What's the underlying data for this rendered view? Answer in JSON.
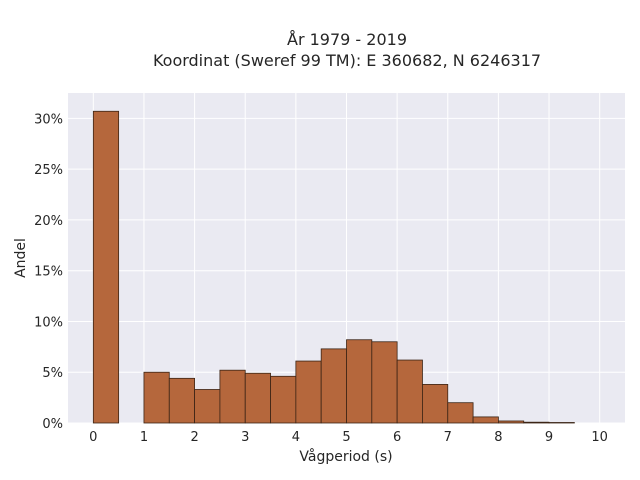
{
  "chart_data": {
    "type": "bar",
    "title": "År 1979 - 2019",
    "subtitle": "Koordinat (Sweref 99 TM): E 360682, N 6246317",
    "xlabel": "Vågperiod (s)",
    "ylabel": "Andel",
    "xlim": [
      -0.5,
      10.5
    ],
    "ylim": [
      0,
      32.5
    ],
    "x_ticks": [
      0,
      1,
      2,
      3,
      4,
      5,
      6,
      7,
      8,
      9,
      10
    ],
    "y_ticks": [
      0,
      5,
      10,
      15,
      20,
      25,
      30
    ],
    "y_tick_labels": [
      "0%",
      "5%",
      "10%",
      "15%",
      "20%",
      "25%",
      "30%"
    ],
    "grid": true,
    "bar_color": "#b5673c",
    "plot_background": "#eaeaf2",
    "bin_width": 0.5,
    "bins": [
      {
        "x": 0.0,
        "value": 30.7
      },
      {
        "x": 1.0,
        "value": 5.0
      },
      {
        "x": 1.5,
        "value": 4.4
      },
      {
        "x": 2.0,
        "value": 3.3
      },
      {
        "x": 2.5,
        "value": 5.2
      },
      {
        "x": 3.0,
        "value": 4.9
      },
      {
        "x": 3.5,
        "value": 4.6
      },
      {
        "x": 4.0,
        "value": 6.1
      },
      {
        "x": 4.5,
        "value": 7.3
      },
      {
        "x": 5.0,
        "value": 8.2
      },
      {
        "x": 5.5,
        "value": 8.0
      },
      {
        "x": 6.0,
        "value": 6.2
      },
      {
        "x": 6.5,
        "value": 3.8
      },
      {
        "x": 7.0,
        "value": 2.0
      },
      {
        "x": 7.5,
        "value": 0.6
      },
      {
        "x": 8.0,
        "value": 0.2
      },
      {
        "x": 8.5,
        "value": 0.08
      },
      {
        "x": 9.0,
        "value": 0.05
      }
    ]
  }
}
